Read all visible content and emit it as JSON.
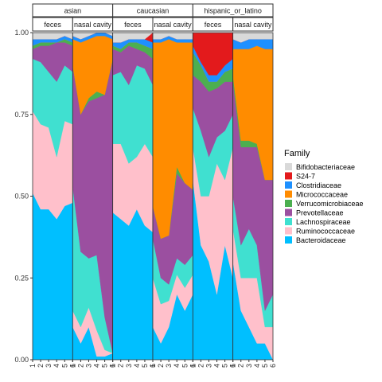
{
  "chart_data": {
    "type": "area",
    "title": "",
    "xlabel": "",
    "ylabel": "",
    "ylim": [
      0,
      1
    ],
    "y_ticks": [
      "0.00",
      "0.25",
      "0.50",
      "0.75",
      "1.00"
    ],
    "legend": {
      "title": "Family",
      "placement": "right",
      "entries": [
        {
          "name": "Bifidobacteriaceae",
          "color": "#d9d9d9"
        },
        {
          "name": "S24-7",
          "color": "#e31a1c"
        },
        {
          "name": "Clostridiaceae",
          "color": "#1e90ff"
        },
        {
          "name": "Micrococcaceae",
          "color": "#ff8c00"
        },
        {
          "name": "Verrucomicrobiaceae",
          "color": "#4caf50"
        },
        {
          "name": "Prevotellaceae",
          "color": "#9b4fa0"
        },
        {
          "name": "Lachnospiraceae",
          "color": "#40e0d0"
        },
        {
          "name": "Ruminococcaceae",
          "color": "#ffc0cb"
        },
        {
          "name": "Bacteroidaceae",
          "color": "#00bfff"
        }
      ]
    },
    "stack_order_bottom_to_top": [
      "Bacteroidaceae",
      "Ruminococcaceae",
      "Lachnospiraceae",
      "Prevotellaceae",
      "Verrucomicrobiaceae",
      "Micrococcaceae",
      "Clostridiaceae",
      "S24-7",
      "Bifidobacteriaceae"
    ],
    "groups": [
      {
        "label": "asian",
        "panels": [
          {
            "label": "feces",
            "x": [
              "1",
              "2",
              "3",
              "4",
              "5",
              "6"
            ],
            "series": [
              {
                "name": "Bacteroidaceae",
                "values": [
                  0.51,
                  0.46,
                  0.46,
                  0.43,
                  0.47,
                  0.48
                ]
              },
              {
                "name": "Ruminococcaceae",
                "values": [
                  0.25,
                  0.26,
                  0.25,
                  0.19,
                  0.26,
                  0.24
                ]
              },
              {
                "name": "Lachnospiraceae",
                "values": [
                  0.16,
                  0.19,
                  0.17,
                  0.23,
                  0.17,
                  0.16
                ]
              },
              {
                "name": "Prevotellaceae",
                "values": [
                  0.03,
                  0.05,
                  0.08,
                  0.12,
                  0.07,
                  0.08
                ]
              },
              {
                "name": "Verrucomicrobiaceae",
                "values": [
                  0.01,
                  0.01,
                  0.01,
                  0.0,
                  0.01,
                  0.01
                ]
              },
              {
                "name": "Micrococcaceae",
                "values": [
                  0.0,
                  0.0,
                  0.0,
                  0.0,
                  0.0,
                  0.0
                ]
              },
              {
                "name": "Clostridiaceae",
                "values": [
                  0.02,
                  0.01,
                  0.01,
                  0.01,
                  0.01,
                  0.01
                ]
              },
              {
                "name": "S24-7",
                "values": [
                  0.0,
                  0.0,
                  0.0,
                  0.0,
                  0.0,
                  0.0
                ]
              },
              {
                "name": "Bifidobacteriaceae",
                "values": [
                  0.02,
                  0.02,
                  0.02,
                  0.02,
                  0.01,
                  0.02
                ]
              }
            ]
          },
          {
            "label": "nasal cavity",
            "x": [
              "1",
              "2",
              "3",
              "4",
              "5",
              "6"
            ],
            "series": [
              {
                "name": "Bacteroidaceae",
                "values": [
                  0.1,
                  0.05,
                  0.1,
                  0.01,
                  0.01,
                  0.02
                ]
              },
              {
                "name": "Ruminococcaceae",
                "values": [
                  0.05,
                  0.05,
                  0.06,
                  0.08,
                  0.02,
                  0.0
                ]
              },
              {
                "name": "Lachnospiraceae",
                "values": [
                  0.38,
                  0.23,
                  0.15,
                  0.23,
                  0.1,
                  0.0
                ]
              },
              {
                "name": "Prevotellaceae",
                "values": [
                  0.37,
                  0.42,
                  0.48,
                  0.48,
                  0.68,
                  0.9
                ]
              },
              {
                "name": "Verrucomicrobiaceae",
                "values": [
                  0.0,
                  0.0,
                  0.01,
                  0.02,
                  0.0,
                  0.0
                ]
              },
              {
                "name": "Micrococcaceae",
                "values": [
                  0.08,
                  0.22,
                  0.18,
                  0.17,
                  0.18,
                  0.06
                ]
              },
              {
                "name": "Clostridiaceae",
                "values": [
                  0.01,
                  0.01,
                  0.01,
                  0.01,
                  0.01,
                  0.01
                ]
              },
              {
                "name": "S24-7",
                "values": [
                  0.0,
                  0.0,
                  0.0,
                  0.0,
                  0.0,
                  0.0
                ]
              },
              {
                "name": "Bifidobacteriaceae",
                "values": [
                  0.01,
                  0.02,
                  0.01,
                  0.0,
                  0.0,
                  0.01
                ]
              }
            ]
          }
        ]
      },
      {
        "label": "caucasian",
        "panels": [
          {
            "label": "feces",
            "x": [
              "1",
              "2",
              "3",
              "4",
              "5",
              "6"
            ],
            "series": [
              {
                "name": "Bacteroidaceae",
                "values": [
                  0.45,
                  0.43,
                  0.41,
                  0.46,
                  0.41,
                  0.39
                ]
              },
              {
                "name": "Ruminococcaceae",
                "values": [
                  0.21,
                  0.23,
                  0.19,
                  0.16,
                  0.25,
                  0.23
                ]
              },
              {
                "name": "Lachnospiraceae",
                "values": [
                  0.21,
                  0.22,
                  0.24,
                  0.28,
                  0.23,
                  0.22
                ]
              },
              {
                "name": "Prevotellaceae",
                "values": [
                  0.08,
                  0.06,
                  0.12,
                  0.05,
                  0.05,
                  0.08
                ]
              },
              {
                "name": "Verrucomicrobiaceae",
                "values": [
                  0.01,
                  0.01,
                  0.01,
                  0.02,
                  0.02,
                  0.03
                ]
              },
              {
                "name": "Micrococcaceae",
                "values": [
                  0.0,
                  0.0,
                  0.0,
                  0.0,
                  0.0,
                  0.0
                ]
              },
              {
                "name": "Clostridiaceae",
                "values": [
                  0.01,
                  0.02,
                  0.01,
                  0.01,
                  0.02,
                  0.02
                ]
              },
              {
                "name": "S24-7",
                "values": [
                  0.0,
                  0.0,
                  0.0,
                  0.0,
                  0.0,
                  0.03
                ]
              },
              {
                "name": "Bifidobacteriaceae",
                "values": [
                  0.03,
                  0.03,
                  0.02,
                  0.02,
                  0.02,
                  0.0
                ]
              }
            ]
          },
          {
            "label": "nasal cavity",
            "x": [
              "1",
              "2",
              "3",
              "4",
              "5",
              "6"
            ],
            "series": [
              {
                "name": "Bacteroidaceae",
                "values": [
                  0.1,
                  0.05,
                  0.1,
                  0.2,
                  0.15,
                  0.2
                ]
              },
              {
                "name": "Ruminococcaceae",
                "values": [
                  0.15,
                  0.12,
                  0.08,
                  0.06,
                  0.07,
                  0.06
                ]
              },
              {
                "name": "Lachnospiraceae",
                "values": [
                  0.12,
                  0.08,
                  0.05,
                  0.05,
                  0.07,
                  0.06
                ]
              },
              {
                "name": "Prevotellaceae",
                "values": [
                  0.1,
                  0.12,
                  0.15,
                  0.26,
                  0.25,
                  0.2
                ]
              },
              {
                "name": "Verrucomicrobiaceae",
                "values": [
                  0.0,
                  0.0,
                  0.0,
                  0.02,
                  0.0,
                  0.0
                ]
              },
              {
                "name": "Micrococcaceae",
                "values": [
                  0.5,
                  0.6,
                  0.6,
                  0.38,
                  0.43,
                  0.45
                ]
              },
              {
                "name": "Clostridiaceae",
                "values": [
                  0.01,
                  0.01,
                  0.01,
                  0.01,
                  0.01,
                  0.01
                ]
              },
              {
                "name": "S24-7",
                "values": [
                  0.0,
                  0.0,
                  0.0,
                  0.0,
                  0.0,
                  0.0
                ]
              },
              {
                "name": "Bifidobacteriaceae",
                "values": [
                  0.02,
                  0.02,
                  0.01,
                  0.02,
                  0.02,
                  0.02
                ]
              }
            ]
          }
        ]
      },
      {
        "label": "hispanic_or_latino",
        "panels": [
          {
            "label": "feces",
            "x": [
              "1",
              "2",
              "3",
              "4",
              "5",
              "6"
            ],
            "series": [
              {
                "name": "Bacteroidaceae",
                "values": [
                  0.55,
                  0.35,
                  0.3,
                  0.2,
                  0.35,
                  0.25
                ]
              },
              {
                "name": "Ruminococcaceae",
                "values": [
                  0.1,
                  0.15,
                  0.2,
                  0.4,
                  0.2,
                  0.4
                ]
              },
              {
                "name": "Lachnospiraceae",
                "values": [
                  0.12,
                  0.2,
                  0.12,
                  0.08,
                  0.15,
                  0.1
                ]
              },
              {
                "name": "Prevotellaceae",
                "values": [
                  0.1,
                  0.15,
                  0.2,
                  0.15,
                  0.15,
                  0.1
                ]
              },
              {
                "name": "Verrucomicrobiaceae",
                "values": [
                  0.07,
                  0.05,
                  0.03,
                  0.02,
                  0.03,
                  0.04
                ]
              },
              {
                "name": "Micrococcaceae",
                "values": [
                  0.0,
                  0.0,
                  0.0,
                  0.0,
                  0.0,
                  0.0
                ]
              },
              {
                "name": "Clostridiaceae",
                "values": [
                  0.02,
                  0.01,
                  0.02,
                  0.02,
                  0.02,
                  0.03
                ]
              },
              {
                "name": "S24-7",
                "values": [
                  0.04,
                  0.09,
                  0.13,
                  0.13,
                  0.1,
                  0.08
                ]
              },
              {
                "name": "Bifidobacteriaceae",
                "values": [
                  0.0,
                  0.0,
                  0.0,
                  0.0,
                  0.0,
                  0.0
                ]
              }
            ]
          },
          {
            "label": "nasal cavity",
            "x": [
              "1",
              "2",
              "3",
              "4",
              "5",
              "6"
            ],
            "series": [
              {
                "name": "Bacteroidaceae",
                "values": [
                  0.3,
                  0.15,
                  0.1,
                  0.05,
                  0.05,
                  0.0
                ]
              },
              {
                "name": "Ruminococcaceae",
                "values": [
                  0.1,
                  0.1,
                  0.15,
                  0.2,
                  0.05,
                  0.1
                ]
              },
              {
                "name": "Lachnospiraceae",
                "values": [
                  0.1,
                  0.1,
                  0.15,
                  0.1,
                  0.05,
                  0.1
                ]
              },
              {
                "name": "Prevotellaceae",
                "values": [
                  0.35,
                  0.3,
                  0.25,
                  0.3,
                  0.4,
                  0.35
                ]
              },
              {
                "name": "Verrucomicrobiaceae",
                "values": [
                  0.02,
                  0.02,
                  0.02,
                  0.01,
                  0.0,
                  0.0
                ]
              },
              {
                "name": "Micrococcaceae",
                "values": [
                  0.08,
                  0.28,
                  0.28,
                  0.3,
                  0.4,
                  0.4
                ]
              },
              {
                "name": "Clostridiaceae",
                "values": [
                  0.03,
                  0.02,
                  0.03,
                  0.02,
                  0.03,
                  0.03
                ]
              },
              {
                "name": "S24-7",
                "values": [
                  0.0,
                  0.0,
                  0.0,
                  0.0,
                  0.0,
                  0.0
                ]
              },
              {
                "name": "Bifidobacteriaceae",
                "values": [
                  0.02,
                  0.03,
                  0.02,
                  0.02,
                  0.02,
                  0.02
                ]
              }
            ]
          }
        ]
      }
    ]
  }
}
